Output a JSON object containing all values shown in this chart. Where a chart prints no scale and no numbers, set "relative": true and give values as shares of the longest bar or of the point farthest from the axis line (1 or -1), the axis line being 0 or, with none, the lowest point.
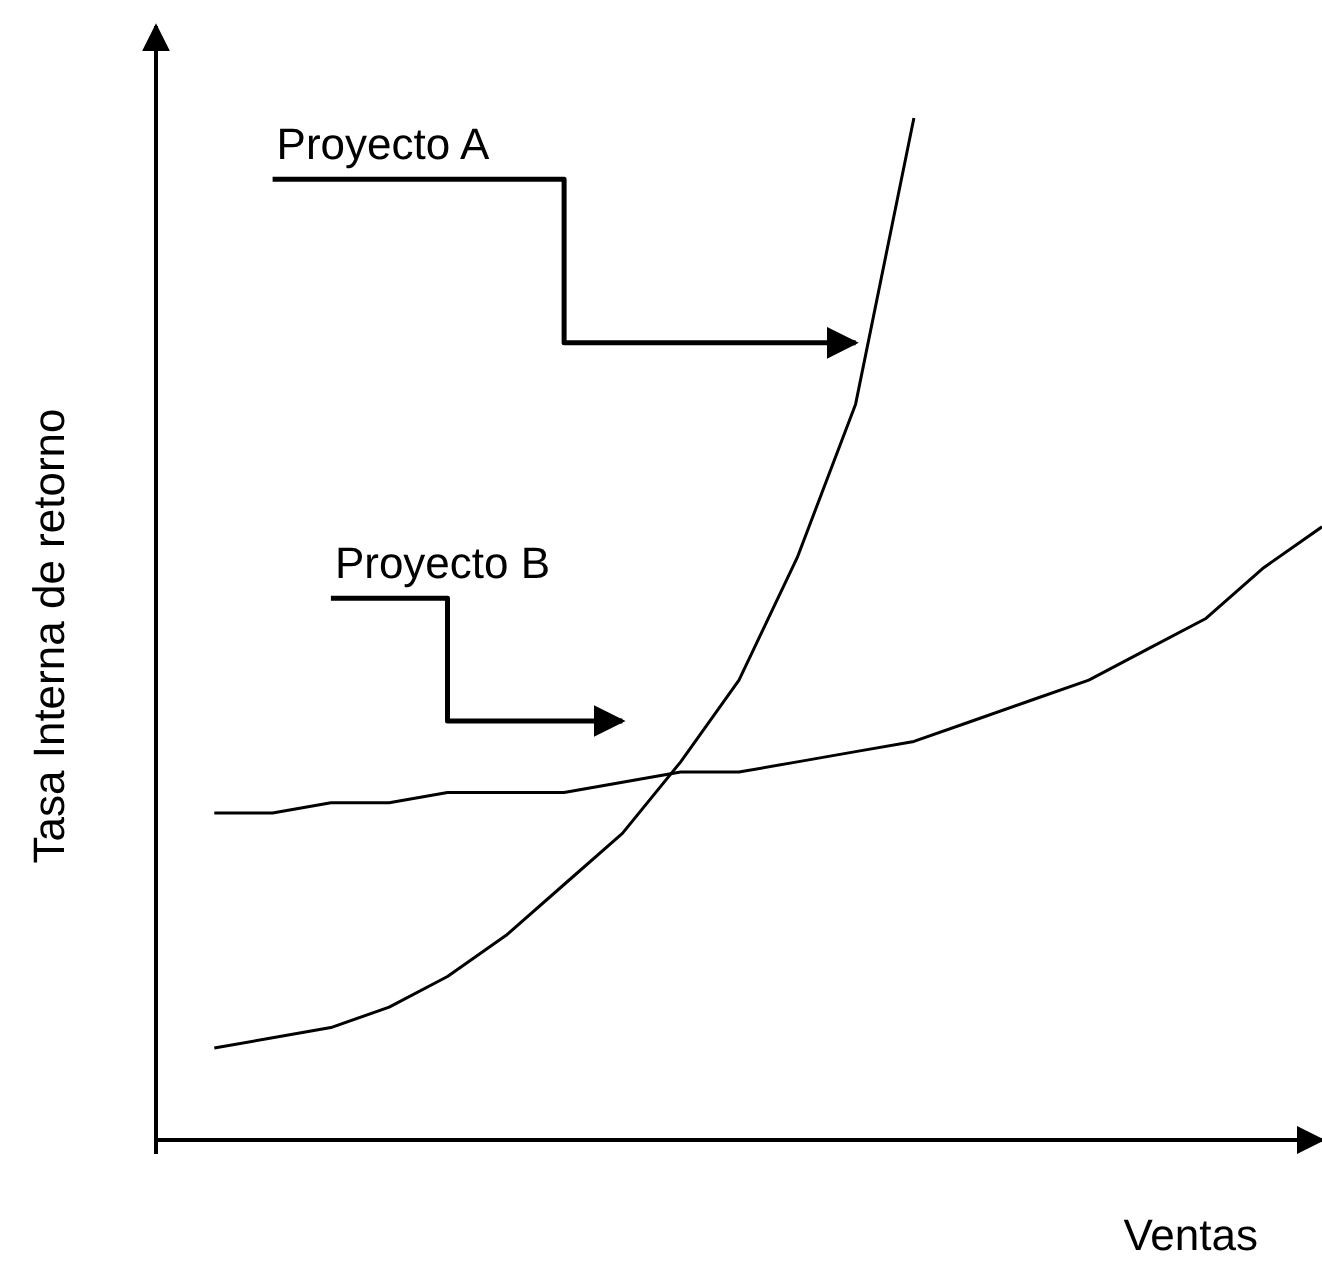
{
  "chart_data": {
    "type": "line",
    "relative": true,
    "xlabel": "Ventas",
    "ylabel": "Tasa Interna de retorno",
    "categories": [
      null,
      null,
      null,
      null,
      null,
      null,
      null,
      null,
      null,
      null,
      null,
      null,
      null,
      null,
      null,
      null,
      null,
      null,
      null,
      null,
      null
    ],
    "series": [
      {
        "color": "#000000",
        "values": [
          null,
          0.09,
          0.1,
          0.11,
          0.13,
          0.16,
          0.2,
          0.25,
          0.3,
          0.37,
          0.45,
          0.57,
          0.72,
          1,
          null,
          null,
          null,
          null,
          null,
          null,
          null
        ]
      },
      {
        "color": "#000000",
        "values": [
          null,
          0.32,
          0.32,
          0.33,
          0.33,
          0.34,
          0.34,
          0.34,
          0.35,
          0.36,
          0.36,
          0.37,
          0.38,
          0.39,
          0.41,
          0.43,
          0.45,
          0.48,
          0.51,
          0.56,
          0.6
        ]
      },
      {
        "type": "step",
        "name": "Proyecto A",
        "color": "#000000",
        "values": [
          null,
          null,
          0.94,
          0.94,
          0.94,
          0.94,
          0.94,
          0.78,
          0.78,
          0.78,
          0.78,
          0.78,
          0.78,
          null,
          null,
          null,
          null,
          null,
          null,
          null,
          null
        ]
      },
      {
        "type": "step",
        "name": "Proyecto B",
        "color": "#000000",
        "values": [
          null,
          null,
          null,
          0.53,
          0.53,
          0.41,
          0.41,
          0.41,
          0.41,
          null,
          null,
          null,
          null,
          null,
          null,
          null,
          null,
          null,
          null,
          null,
          null
        ]
      }
    ]
  }
}
